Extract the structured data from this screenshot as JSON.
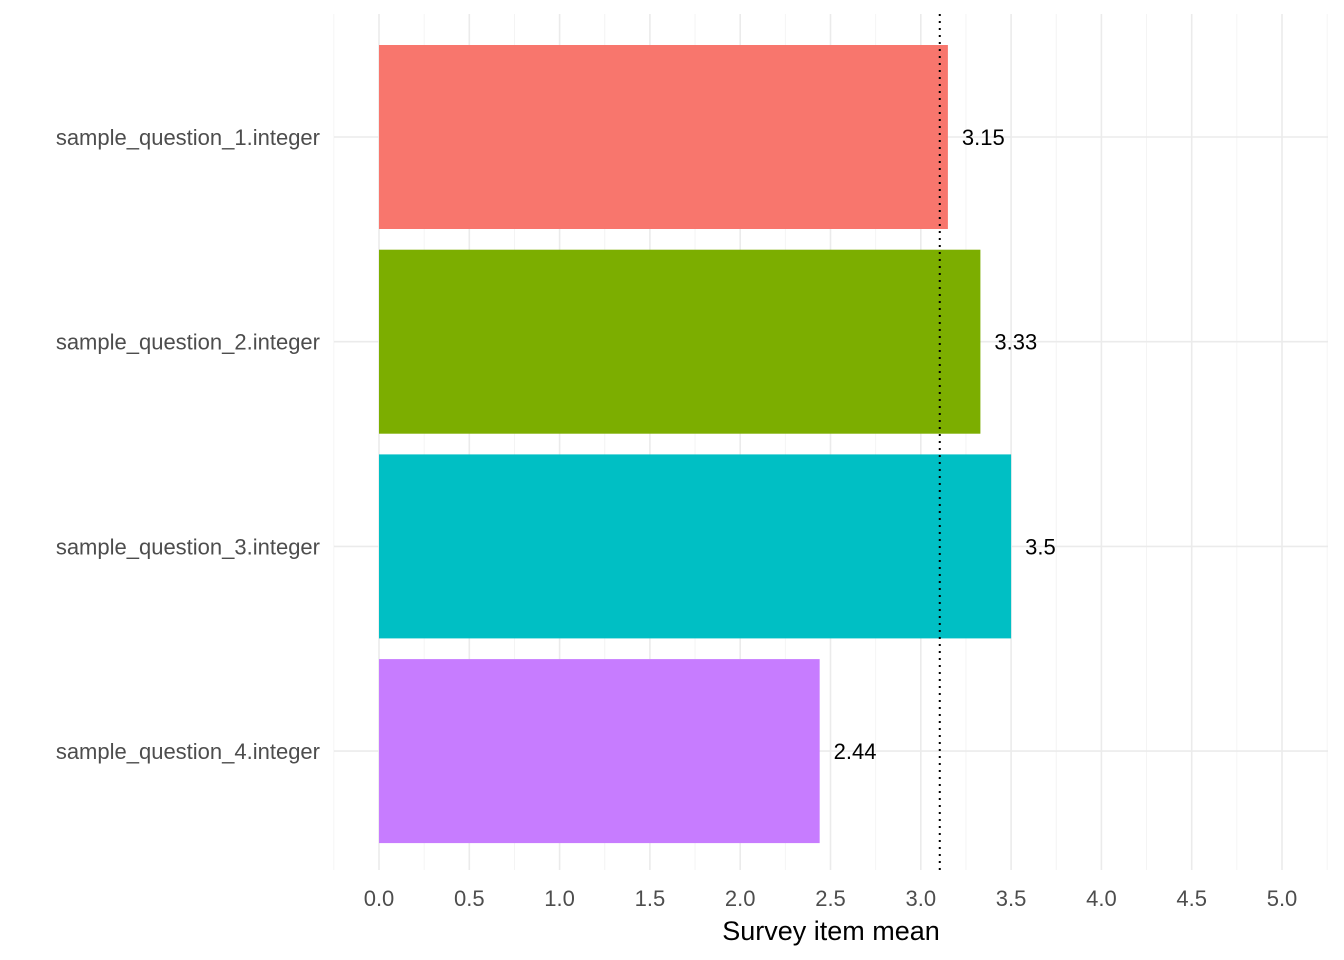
{
  "chart_data": {
    "type": "bar",
    "orientation": "horizontal",
    "categories": [
      "sample_question_1.integer",
      "sample_question_2.integer",
      "sample_question_3.integer",
      "sample_question_4.integer"
    ],
    "values": [
      3.15,
      3.33,
      3.5,
      2.44
    ],
    "value_labels": [
      "3.15",
      "3.33",
      "3.5",
      "2.44"
    ],
    "colors": [
      "#F8766D",
      "#7CAE00",
      "#00BFC4",
      "#C77CFF"
    ],
    "xlabel": "Survey item mean",
    "ylabel": "",
    "xlim": [
      -0.25,
      5.25
    ],
    "xticks": [
      0.0,
      0.5,
      1.0,
      1.5,
      2.0,
      2.5,
      3.0,
      3.5,
      4.0,
      4.5,
      5.0
    ],
    "xtick_labels": [
      "0.0",
      "0.5",
      "1.0",
      "1.5",
      "2.0",
      "2.5",
      "3.0",
      "3.5",
      "4.0",
      "4.5",
      "5.0"
    ],
    "reference_line": {
      "x": 3.105,
      "style": "dotted",
      "color": "#000000"
    },
    "grid": true,
    "legend": "none"
  }
}
